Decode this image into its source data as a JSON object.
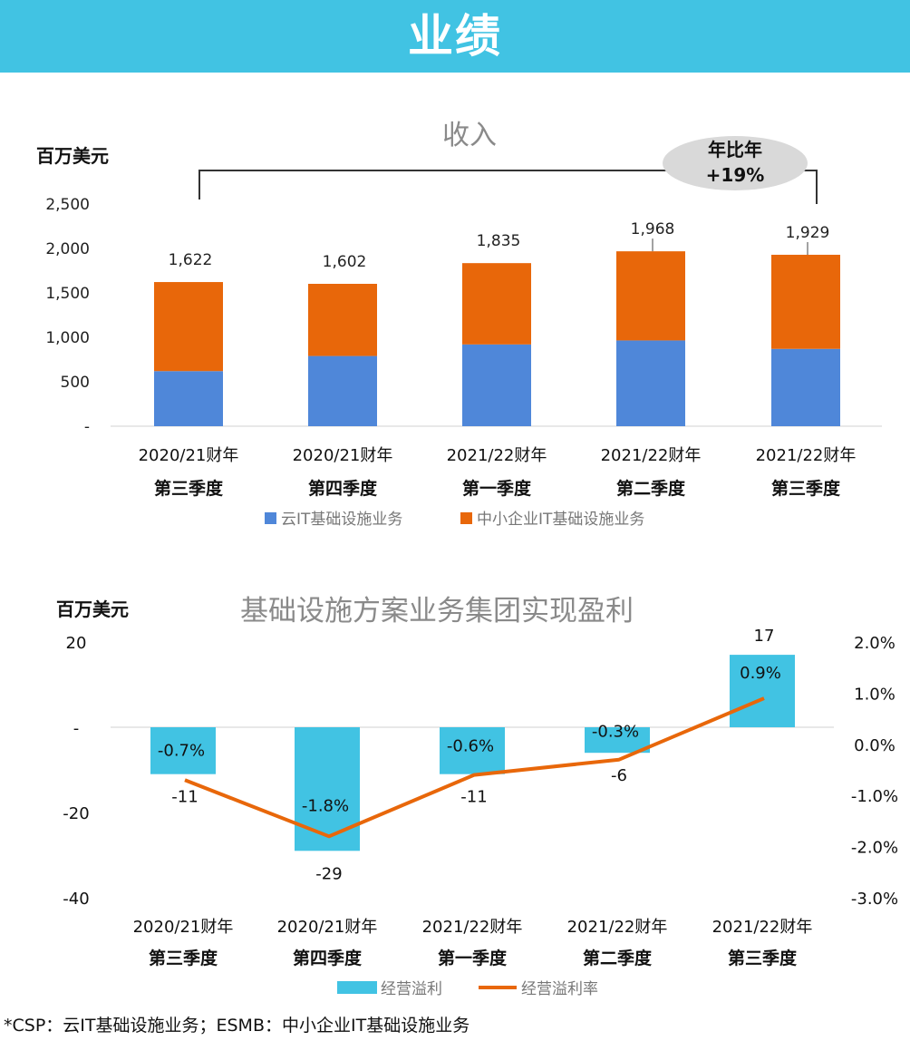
{
  "header": {
    "title": "业绩"
  },
  "footnote": "*CSP：云IT基础设施业务；ESMB：中小企业IT基础设施业务",
  "colors": {
    "header": "#41c3e3",
    "cloud_it": "#4f87d9",
    "smb_it": "#e8670a",
    "op_profit": "#41c3e3",
    "op_margin": "#e8670a"
  },
  "chart_data": [
    {
      "type": "bar",
      "stacked": true,
      "title": "收入",
      "ylabel": "百万美元",
      "ylim": [
        0,
        2500
      ],
      "y_ticks": [
        "-",
        "500",
        "1,000",
        "1,500",
        "2,000",
        "2,500"
      ],
      "categories": [
        [
          "2020/21财年",
          "第三季度"
        ],
        [
          "2020/21财年",
          "第四季度"
        ],
        [
          "2021/22财年",
          "第一季度"
        ],
        [
          "2021/22财年",
          "第二季度"
        ],
        [
          "2021/22财年",
          "第三季度"
        ]
      ],
      "series": [
        {
          "name": "云IT基础设施业务",
          "values": [
            620,
            790,
            920,
            965,
            870
          ]
        },
        {
          "name": "中小企业IT基础设施业务",
          "values": [
            1002,
            812,
            915,
            1003,
            1059
          ]
        }
      ],
      "totals": [
        1622,
        1602,
        1835,
        1968,
        1929
      ],
      "total_labels": [
        "1,622",
        "1,602",
        "1,835",
        "1,968",
        "1,929"
      ],
      "annotation": {
        "text_line1": "年比年",
        "text_line2": "+19%"
      },
      "legend_position": "bottom"
    },
    {
      "type": "bar-line",
      "title": "基础设施方案业务集团实现盈利",
      "ylabel": "百万美元",
      "ylim": [
        -40,
        20
      ],
      "y_ticks": [
        "20",
        "-",
        "-20",
        "-40"
      ],
      "y2lim": [
        -0.03,
        0.02
      ],
      "y2_ticks": [
        "2.0%",
        "1.0%",
        "0.0%",
        "-1.0%",
        "-2.0%",
        "-3.0%"
      ],
      "categories": [
        [
          "2020/21财年",
          "第三季度"
        ],
        [
          "2020/21财年",
          "第四季度"
        ],
        [
          "2021/22财年",
          "第一季度"
        ],
        [
          "2021/22财年",
          "第二季度"
        ],
        [
          "2021/22财年",
          "第三季度"
        ]
      ],
      "series": [
        {
          "name": "经营溢利",
          "type": "bar",
          "values": [
            -11,
            -29,
            -11,
            -6,
            17
          ],
          "labels": [
            "-11",
            "-29",
            "-11",
            "-6",
            "17"
          ]
        },
        {
          "name": "经营溢利率",
          "type": "line",
          "values": [
            -0.007,
            -0.018,
            -0.006,
            -0.003,
            0.009
          ],
          "labels": [
            "-0.7%",
            "-1.8%",
            "-0.6%",
            "-0.3%",
            "0.9%"
          ]
        }
      ],
      "legend_position": "bottom"
    }
  ]
}
